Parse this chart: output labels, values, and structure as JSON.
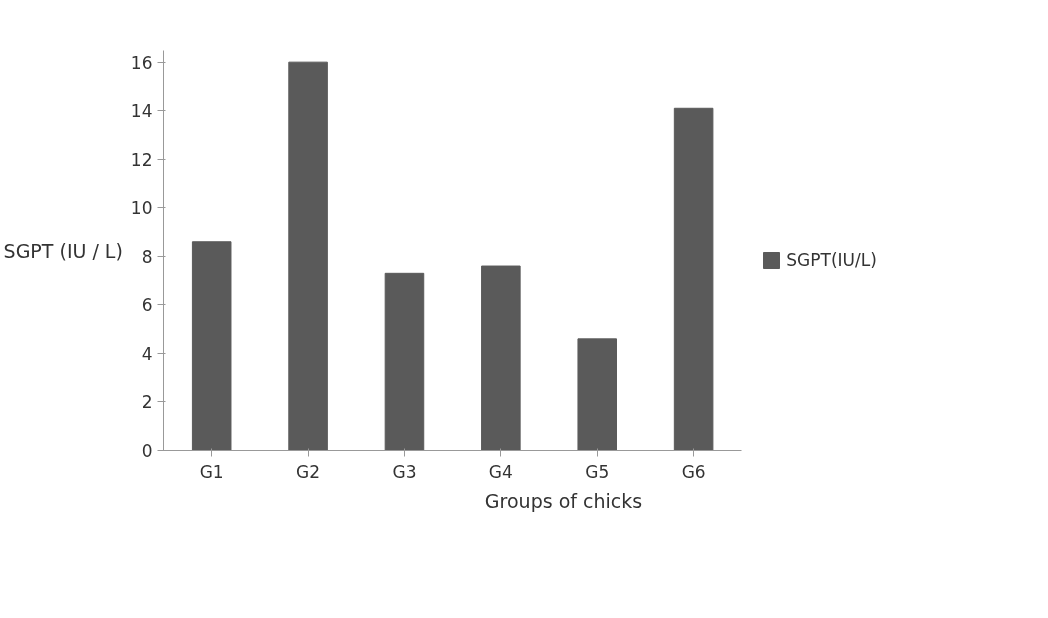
{
  "chart_data": {
    "type": "bar",
    "xlabel": "Groups of chicks",
    "ylabel": "SGPT (IU / L)",
    "categories": [
      "G1",
      "G2",
      "G3",
      "G4",
      "G5",
      "G6"
    ],
    "series": [
      {
        "name": "SGPT(IU/L)",
        "color": "#5a5a5a",
        "values": [
          8.6,
          16,
          7.3,
          7.6,
          4.6,
          14.1
        ]
      }
    ],
    "ylim": [
      0,
      16
    ],
    "yticks": [
      0,
      2,
      4,
      6,
      8,
      10,
      12,
      14,
      16
    ],
    "grid": false,
    "legend": "right"
  }
}
